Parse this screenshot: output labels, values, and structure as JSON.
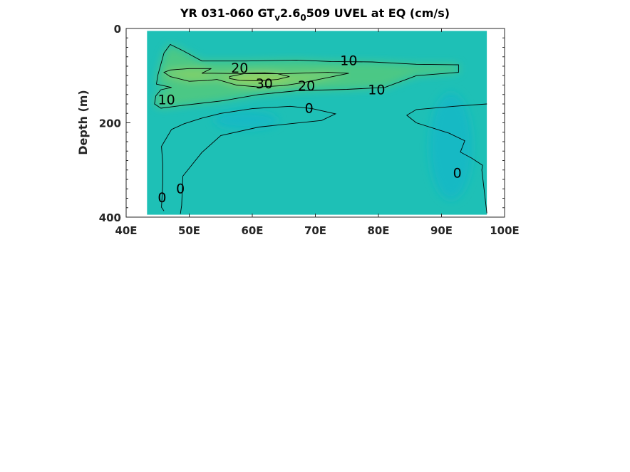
{
  "chart_data": {
    "type": "contour",
    "title": {
      "prefix": "YR 031-060 GT",
      "sub1": "v",
      "mid": "2.6",
      "sub2": "0",
      "suffix": "509 UVEL at EQ (cm/s)"
    },
    "xlabel": "",
    "ylabel": "Depth (m)",
    "xlim": [
      40,
      100
    ],
    "ylim": [
      0,
      400
    ],
    "y_reversed": true,
    "x_ticks": [
      40,
      50,
      60,
      70,
      80,
      90,
      100
    ],
    "x_tick_labels": [
      "40E",
      "50E",
      "60E",
      "70E",
      "80E",
      "90E",
      "100E"
    ],
    "y_ticks": [
      0,
      200,
      400
    ],
    "y_tick_labels": [
      "0",
      "200",
      "400"
    ],
    "data_extent": {
      "lon": [
        43.3,
        97.2
      ],
      "depth": [
        5,
        395
      ]
    },
    "contour_levels": [
      0,
      10,
      20,
      30
    ],
    "contours": [
      {
        "level": 30,
        "points": [
          [
            56.4,
            102
          ],
          [
            59,
            95
          ],
          [
            62,
            94
          ],
          [
            64,
            96
          ],
          [
            65.9,
            102
          ],
          [
            64,
            108
          ],
          [
            61,
            111
          ],
          [
            58,
            110
          ],
          [
            56.4,
            106
          ],
          [
            56.4,
            102
          ]
        ]
      },
      {
        "level": 20,
        "points": [
          [
            46,
            93
          ],
          [
            47,
            102
          ],
          [
            50,
            112
          ],
          [
            53,
            110
          ],
          [
            54.4,
            108
          ],
          [
            57.5,
            120
          ],
          [
            61,
            124
          ],
          [
            65,
            121
          ],
          [
            68,
            115
          ],
          [
            72,
            104
          ],
          [
            75.3,
            95
          ],
          [
            72,
            93
          ],
          [
            65,
            96
          ],
          [
            60,
            96
          ],
          [
            54,
            95
          ],
          [
            52,
            95
          ],
          [
            53.5,
            85
          ],
          [
            50,
            85
          ],
          [
            47,
            88
          ],
          [
            46,
            93
          ]
        ]
      },
      {
        "level": 10,
        "points": [
          [
            45.5,
            169
          ],
          [
            44.5,
            160
          ],
          [
            44.7,
            143
          ],
          [
            45.5,
            130
          ],
          [
            47.2,
            125
          ],
          [
            44.8,
            118
          ],
          [
            45,
            100
          ],
          [
            46,
            52
          ],
          [
            47,
            34
          ],
          [
            49,
            47
          ],
          [
            52,
            69
          ],
          [
            59,
            69
          ],
          [
            67,
            67
          ],
          [
            72.5,
            70
          ],
          [
            79,
            71
          ],
          [
            86,
            76
          ],
          [
            92.7,
            77
          ],
          [
            92.7,
            93
          ],
          [
            86,
            100
          ],
          [
            84,
            110
          ],
          [
            81,
            125
          ],
          [
            75,
            129
          ],
          [
            67,
            132
          ],
          [
            61,
            140
          ],
          [
            55.4,
            153
          ],
          [
            49,
            163
          ],
          [
            45.5,
            169
          ]
        ]
      },
      {
        "level": 0,
        "points": [
          [
            46,
            387
          ],
          [
            45.6,
            379
          ],
          [
            45.8,
            330
          ],
          [
            45.8,
            286
          ],
          [
            45.6,
            250
          ],
          [
            47.2,
            214
          ],
          [
            49.2,
            202
          ],
          [
            52,
            190
          ],
          [
            55,
            180
          ],
          [
            60,
            170
          ],
          [
            66,
            165
          ],
          [
            69.5,
            170
          ],
          [
            73.2,
            181
          ],
          [
            71,
            195
          ],
          [
            61,
            209
          ],
          [
            55,
            227
          ],
          [
            52,
            263
          ],
          [
            49,
            313
          ],
          [
            48.8,
            375
          ],
          [
            48.6,
            393
          ]
        ]
      },
      {
        "level": 0,
        "points": [
          [
            97.2,
            160
          ],
          [
            92,
            165
          ],
          [
            86,
            172
          ],
          [
            84.5,
            184
          ],
          [
            86,
            200
          ],
          [
            91.2,
            222
          ],
          [
            93.7,
            238
          ],
          [
            93,
            262
          ],
          [
            94.8,
            275
          ],
          [
            96.5,
            290
          ],
          [
            96.4,
            300
          ],
          [
            97.2,
            392
          ]
        ]
      }
    ],
    "contour_labels": [
      {
        "text": "30",
        "lon": 61.9,
        "depth": 116
      },
      {
        "text": "20",
        "lon": 58.0,
        "depth": 83
      },
      {
        "text": "20",
        "lon": 68.6,
        "depth": 121
      },
      {
        "text": "10",
        "lon": 75.3,
        "depth": 67
      },
      {
        "text": "10",
        "lon": 79.7,
        "depth": 129
      },
      {
        "text": "10",
        "lon": 46.4,
        "depth": 150
      },
      {
        "text": "0",
        "lon": 69.0,
        "depth": 168
      },
      {
        "text": "0",
        "lon": 45.7,
        "depth": 358
      },
      {
        "text": "0",
        "lon": 48.6,
        "depth": 339
      },
      {
        "text": "0",
        "lon": 92.5,
        "depth": 306
      }
    ],
    "colors": {
      "background": "#1ec0b6",
      "band_0_10": "#25c29f",
      "band_10_20": "#4cc885",
      "band_20_30": "#7dd06b",
      "band_above_30": "#9dd45c",
      "band_below_0": "#17b9c4"
    }
  }
}
